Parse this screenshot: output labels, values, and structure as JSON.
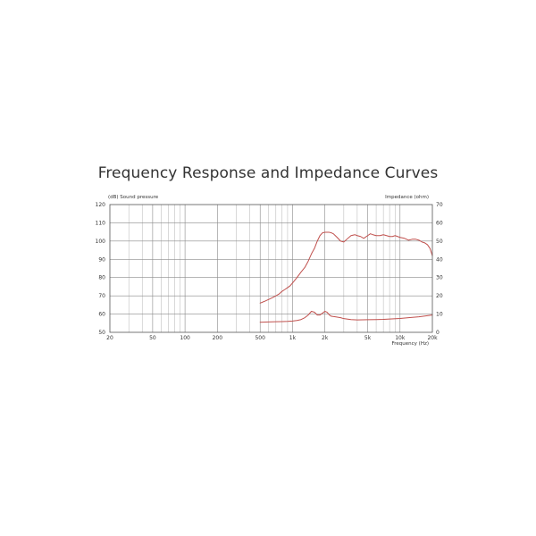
{
  "chart_data": {
    "type": "line",
    "title": "Frequency Response and Impedance Curves",
    "left_axis_label": "(dB) Sound pressure",
    "right_axis_label": "Impedance (ohm)",
    "xlabel": "Frequency (Hz)",
    "x_scale": "log",
    "xlim": [
      20,
      20000
    ],
    "ylim_left": [
      50,
      120
    ],
    "ylim_right": [
      0,
      70
    ],
    "x_ticks": [
      {
        "value": 20,
        "label": "20"
      },
      {
        "value": 50,
        "label": "50"
      },
      {
        "value": 100,
        "label": "100"
      },
      {
        "value": 200,
        "label": "200"
      },
      {
        "value": 500,
        "label": "500"
      },
      {
        "value": 1000,
        "label": "1k"
      },
      {
        "value": 2000,
        "label": "2k"
      },
      {
        "value": 5000,
        "label": "5k"
      },
      {
        "value": 10000,
        "label": "10k"
      },
      {
        "value": 20000,
        "label": "20k"
      }
    ],
    "y_ticks_left": [
      "120",
      "110",
      "100",
      "90",
      "80",
      "70",
      "60",
      "50"
    ],
    "y_ticks_right": [
      "70",
      "60",
      "50",
      "40",
      "30",
      "20",
      "10",
      "0"
    ],
    "grid": true,
    "line_color": "#c0504d",
    "series": [
      {
        "axis": "left",
        "x": [
          500,
          550,
          600,
          650,
          700,
          750,
          800,
          850,
          900,
          950,
          1000,
          1100,
          1200,
          1300,
          1400,
          1500,
          1600,
          1700,
          1800,
          1900,
          2000,
          2100,
          2200,
          2300,
          2400,
          2500,
          2600,
          2800,
          3000,
          3200,
          3500,
          3800,
          4000,
          4300,
          4600,
          5000,
          5300,
          5600,
          6000,
          6500,
          7000,
          7500,
          8000,
          8500,
          9000,
          9500,
          10000,
          11000,
          12000,
          13000,
          14000,
          15000,
          16000,
          17000,
          18000,
          19000,
          20000
        ],
        "values": [
          66,
          67,
          68,
          69,
          70,
          71,
          72.5,
          73.5,
          74.5,
          75.5,
          77,
          80,
          83,
          85.5,
          89,
          93,
          96,
          100,
          103,
          104.5,
          104.8,
          104.8,
          104.8,
          104.5,
          104,
          103,
          102,
          100,
          99.5,
          101,
          103,
          103.5,
          103,
          102.5,
          101.5,
          103,
          104,
          103.5,
          103,
          103,
          103.5,
          103,
          102.5,
          102.5,
          103,
          102.5,
          102,
          101.5,
          100.5,
          101,
          101,
          100.5,
          99.5,
          99,
          98,
          96,
          92
        ]
      },
      {
        "axis": "right",
        "x": [
          500,
          600,
          700,
          800,
          900,
          1000,
          1100,
          1200,
          1300,
          1400,
          1500,
          1600,
          1700,
          1800,
          1900,
          2000,
          2100,
          2200,
          2300,
          2500,
          2800,
          3000,
          3500,
          4000,
          5000,
          6000,
          7000,
          8000,
          10000,
          12000,
          15000,
          20000
        ],
        "values": [
          5.5,
          5.7,
          5.8,
          5.9,
          6.0,
          6.2,
          6.5,
          7.0,
          8.0,
          9.5,
          11.5,
          11.0,
          9.5,
          9.5,
          10.5,
          11.5,
          11.0,
          9.5,
          8.8,
          8.5,
          8.0,
          7.5,
          7.0,
          6.8,
          6.9,
          7.0,
          7.1,
          7.3,
          7.6,
          8.0,
          8.5,
          9.5
        ]
      }
    ]
  }
}
